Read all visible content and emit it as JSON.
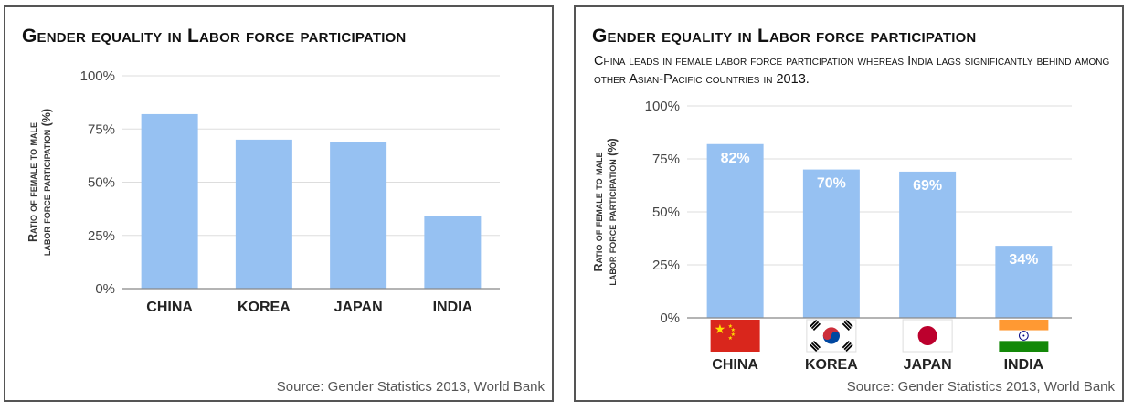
{
  "colors": {
    "bar": "#96c1f2",
    "cn_red": "#d9261c",
    "cn_star": "#ffde00",
    "kr_red": "#cd2e3a",
    "kr_blue": "#0047a0",
    "jp_red": "#bc002d",
    "in_saffron": "#ff9933",
    "in_green": "#138808",
    "in_chakra": "#000080"
  },
  "chart_data": [
    {
      "type": "bar",
      "title": "Gender equality in Labor force participation",
      "categories": [
        "CHINA",
        "KOREA",
        "JAPAN",
        "INDIA"
      ],
      "values": [
        82,
        70,
        69,
        34
      ],
      "ylim": [
        0,
        100
      ],
      "yticks": [
        "0%",
        "25%",
        "50%",
        "75%",
        "100%"
      ],
      "ylabel_lines": [
        "Ratio of female to male",
        "labor force participation (%)"
      ],
      "xlabel": "",
      "grid": true,
      "source": "Source: Gender Statistics 2013, World Bank"
    },
    {
      "type": "bar",
      "title": "Gender equality in Labor force participation",
      "subtitle": "China leads in female labor force participation whereas India lags significantly behind among other Asian-Pacific countries in 2013.",
      "categories": [
        "CHINA",
        "KOREA",
        "JAPAN",
        "INDIA"
      ],
      "values": [
        82,
        70,
        69,
        34
      ],
      "data_labels": [
        "82%",
        "70%",
        "69%",
        "34%"
      ],
      "flags": [
        "china-flag-icon",
        "korea-flag-icon",
        "japan-flag-icon",
        "india-flag-icon"
      ],
      "ylim": [
        0,
        100
      ],
      "yticks": [
        "0%",
        "25%",
        "50%",
        "75%",
        "100%"
      ],
      "ylabel_lines": [
        "Ratio of female to male",
        "labor force participation (%)"
      ],
      "xlabel": "",
      "grid": true,
      "source": "Source: Gender Statistics 2013, World Bank"
    }
  ]
}
